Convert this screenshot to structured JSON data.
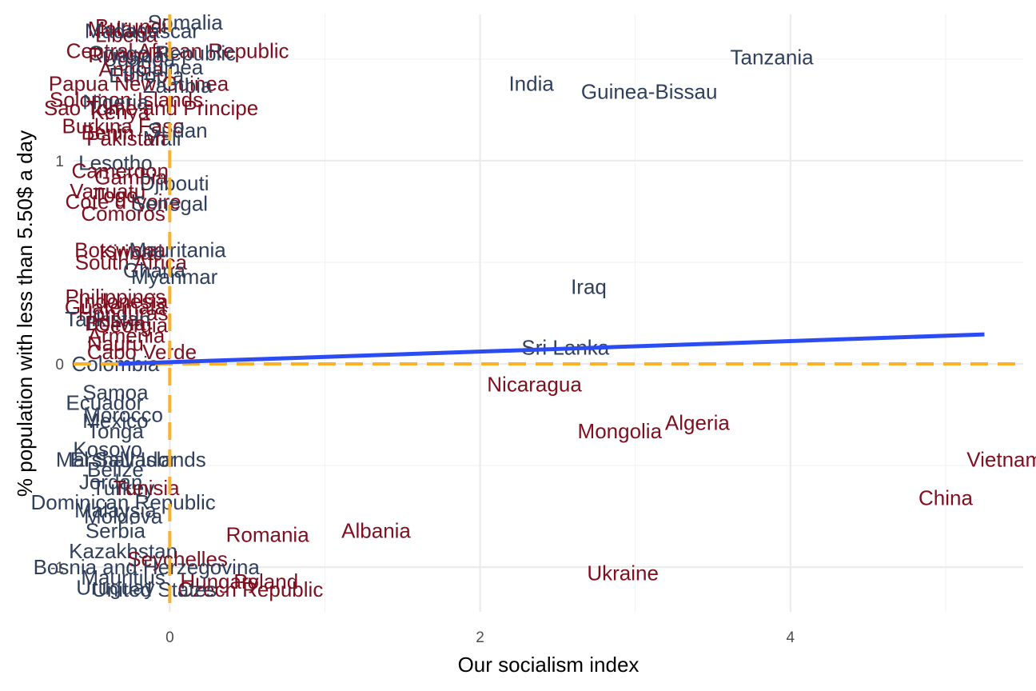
{
  "chart_data": {
    "type": "scatter",
    "title": "",
    "xlabel": "Our socialism index",
    "ylabel": "% population with less than 5.50$ a day",
    "xlim": [
      -0.62,
      5.5
    ],
    "ylim": [
      -1.22,
      1.72
    ],
    "x_ticks": [
      0,
      2,
      4
    ],
    "y_ticks": [
      -1,
      0,
      1
    ],
    "grid": true,
    "colors": {
      "positive": "#2f3f5c",
      "negative": "#7f0f1f",
      "trend": "#2b4cf3",
      "reference": "#fbb12a"
    },
    "reference_lines": {
      "x": 0,
      "y": 0
    },
    "trend_line": {
      "x": [
        -0.33,
        5.25
      ],
      "y": [
        0.0,
        0.145
      ]
    },
    "points": [
      {
        "label": "Tanzania",
        "x": 3.88,
        "y": 1.51,
        "group": "positive"
      },
      {
        "label": "India",
        "x": 2.33,
        "y": 1.38,
        "group": "positive"
      },
      {
        "label": "Guinea-Bissau",
        "x": 3.09,
        "y": 1.34,
        "group": "positive"
      },
      {
        "label": "Iraq",
        "x": 2.7,
        "y": 0.38,
        "group": "positive"
      },
      {
        "label": "Sri Lanka",
        "x": 2.55,
        "y": 0.08,
        "group": "positive"
      },
      {
        "label": "Nicaragua",
        "x": 2.35,
        "y": -0.1,
        "group": "negative"
      },
      {
        "label": "Mongolia",
        "x": 2.9,
        "y": -0.33,
        "group": "negative"
      },
      {
        "label": "Algeria",
        "x": 3.4,
        "y": -0.29,
        "group": "negative"
      },
      {
        "label": "Vietnam",
        "x": 5.38,
        "y": -0.47,
        "group": "negative"
      },
      {
        "label": "China",
        "x": 5.0,
        "y": -0.66,
        "group": "negative"
      },
      {
        "label": "Albania",
        "x": 1.33,
        "y": -0.82,
        "group": "negative"
      },
      {
        "label": "Romania",
        "x": 0.63,
        "y": -0.84,
        "group": "negative"
      },
      {
        "label": "Ukraine",
        "x": 2.92,
        "y": -1.03,
        "group": "negative"
      },
      {
        "label": "Poland",
        "x": 0.62,
        "y": -1.07,
        "group": "negative"
      },
      {
        "label": "Czech Republic",
        "x": 0.52,
        "y": -1.11,
        "group": "negative"
      },
      {
        "label": "Hungary",
        "x": 0.32,
        "y": -1.07,
        "group": "negative"
      },
      {
        "label": "Somalia",
        "x": 0.1,
        "y": 1.68,
        "group": "positive"
      },
      {
        "label": "Burundi",
        "x": -0.25,
        "y": 1.66,
        "group": "negative"
      },
      {
        "label": "Malawi",
        "x": -0.32,
        "y": 1.65,
        "group": "negative"
      },
      {
        "label": "Liberia",
        "x": -0.28,
        "y": 1.62,
        "group": "negative"
      },
      {
        "label": "Madagascar",
        "x": -0.18,
        "y": 1.64,
        "group": "positive"
      },
      {
        "label": "Central African Republic",
        "x": 0.05,
        "y": 1.54,
        "group": "negative"
      },
      {
        "label": "Congo Republic",
        "x": -0.05,
        "y": 1.53,
        "group": "positive"
      },
      {
        "label": "Rwanda",
        "x": -0.28,
        "y": 1.52,
        "group": "negative"
      },
      {
        "label": "Uganda",
        "x": -0.2,
        "y": 1.5,
        "group": "positive"
      },
      {
        "label": "Angola",
        "x": -0.25,
        "y": 1.45,
        "group": "negative"
      },
      {
        "label": "Guinea",
        "x": 0.0,
        "y": 1.46,
        "group": "positive"
      },
      {
        "label": "Ethiopia",
        "x": -0.15,
        "y": 1.42,
        "group": "positive"
      },
      {
        "label": "Papua New Guinea",
        "x": -0.2,
        "y": 1.38,
        "group": "negative"
      },
      {
        "label": "Zambia",
        "x": 0.05,
        "y": 1.37,
        "group": "positive"
      },
      {
        "label": "Solomon Islands",
        "x": -0.28,
        "y": 1.3,
        "group": "negative"
      },
      {
        "label": "Nigeria",
        "x": -0.35,
        "y": 1.29,
        "group": "positive"
      },
      {
        "label": "Sao Tome and Principe",
        "x": -0.12,
        "y": 1.26,
        "group": "negative"
      },
      {
        "label": "Kenya",
        "x": -0.32,
        "y": 1.24,
        "group": "negative"
      },
      {
        "label": "Burkina Faso",
        "x": -0.3,
        "y": 1.17,
        "group": "negative"
      },
      {
        "label": "Sudan",
        "x": 0.05,
        "y": 1.15,
        "group": "positive"
      },
      {
        "label": "Benin",
        "x": -0.4,
        "y": 1.14,
        "group": "negative"
      },
      {
        "label": "Mali",
        "x": -0.05,
        "y": 1.11,
        "group": "positive"
      },
      {
        "label": "Pakistan",
        "x": -0.28,
        "y": 1.11,
        "group": "negative"
      },
      {
        "label": "Lesotho",
        "x": -0.35,
        "y": 0.99,
        "group": "positive"
      },
      {
        "label": "Cameroon",
        "x": -0.32,
        "y": 0.95,
        "group": "negative"
      },
      {
        "label": "Gambia",
        "x": -0.25,
        "y": 0.92,
        "group": "negative"
      },
      {
        "label": "Djibouti",
        "x": 0.03,
        "y": 0.89,
        "group": "positive"
      },
      {
        "label": "Vanuatu",
        "x": -0.4,
        "y": 0.85,
        "group": "negative"
      },
      {
        "label": "Togo",
        "x": -0.35,
        "y": 0.83,
        "group": "negative"
      },
      {
        "label": "Cote d'Ivoire",
        "x": -0.3,
        "y": 0.8,
        "group": "negative"
      },
      {
        "label": "Senegal",
        "x": 0.0,
        "y": 0.79,
        "group": "positive"
      },
      {
        "label": "Comoros",
        "x": -0.3,
        "y": 0.74,
        "group": "negative"
      },
      {
        "label": "Botswana",
        "x": -0.32,
        "y": 0.56,
        "group": "negative"
      },
      {
        "label": "Kiribati",
        "x": -0.25,
        "y": 0.55,
        "group": "negative"
      },
      {
        "label": "Mauritania",
        "x": 0.05,
        "y": 0.56,
        "group": "positive"
      },
      {
        "label": "South Africa",
        "x": -0.25,
        "y": 0.5,
        "group": "negative"
      },
      {
        "label": "Ghana",
        "x": -0.1,
        "y": 0.46,
        "group": "positive"
      },
      {
        "label": "Myanmar",
        "x": 0.03,
        "y": 0.43,
        "group": "positive"
      },
      {
        "label": "Philippines",
        "x": -0.35,
        "y": 0.33,
        "group": "negative"
      },
      {
        "label": "Indonesia",
        "x": -0.3,
        "y": 0.31,
        "group": "negative"
      },
      {
        "label": "Guatemala",
        "x": -0.35,
        "y": 0.28,
        "group": "negative"
      },
      {
        "label": "Honduras",
        "x": -0.3,
        "y": 0.25,
        "group": "negative"
      },
      {
        "label": "Tajikistan",
        "x": -0.4,
        "y": 0.22,
        "group": "positive"
      },
      {
        "label": "Bolivia",
        "x": -0.35,
        "y": 0.2,
        "group": "negative"
      },
      {
        "label": "Georgia",
        "x": -0.25,
        "y": 0.19,
        "group": "negative"
      },
      {
        "label": "Armenia",
        "x": -0.28,
        "y": 0.14,
        "group": "negative"
      },
      {
        "label": "Nauru",
        "x": -0.35,
        "y": 0.1,
        "group": "negative"
      },
      {
        "label": "Cabo Verde",
        "x": -0.18,
        "y": 0.06,
        "group": "negative"
      },
      {
        "label": "Colombia",
        "x": -0.35,
        "y": 0.0,
        "group": "positive"
      },
      {
        "label": "Samoa",
        "x": -0.35,
        "y": -0.14,
        "group": "positive"
      },
      {
        "label": "Ecuador",
        "x": -0.42,
        "y": -0.19,
        "group": "positive"
      },
      {
        "label": "Morocco",
        "x": -0.3,
        "y": -0.25,
        "group": "positive"
      },
      {
        "label": "Mexico",
        "x": -0.35,
        "y": -0.28,
        "group": "positive"
      },
      {
        "label": "Tonga",
        "x": -0.35,
        "y": -0.33,
        "group": "positive"
      },
      {
        "label": "Kosovo",
        "x": -0.4,
        "y": -0.42,
        "group": "positive"
      },
      {
        "label": "El Salvador",
        "x": -0.3,
        "y": -0.47,
        "group": "positive"
      },
      {
        "label": "Marshall Islands",
        "x": -0.25,
        "y": -0.47,
        "group": "positive"
      },
      {
        "label": "Belize",
        "x": -0.35,
        "y": -0.52,
        "group": "positive"
      },
      {
        "label": "Jordan",
        "x": -0.38,
        "y": -0.58,
        "group": "positive"
      },
      {
        "label": "Turkey",
        "x": -0.3,
        "y": -0.61,
        "group": "positive"
      },
      {
        "label": "Tunisia",
        "x": -0.15,
        "y": -0.61,
        "group": "negative"
      },
      {
        "label": "Dominican Republic",
        "x": -0.3,
        "y": -0.68,
        "group": "positive"
      },
      {
        "label": "Malaysia",
        "x": -0.35,
        "y": -0.72,
        "group": "positive"
      },
      {
        "label": "Moldova",
        "x": -0.3,
        "y": -0.75,
        "group": "positive"
      },
      {
        "label": "Serbia",
        "x": -0.35,
        "y": -0.82,
        "group": "positive"
      },
      {
        "label": "Kazakhstan",
        "x": -0.3,
        "y": -0.92,
        "group": "positive"
      },
      {
        "label": "Seychelles",
        "x": 0.05,
        "y": -0.96,
        "group": "negative"
      },
      {
        "label": "Bosnia and Herzegovina",
        "x": -0.15,
        "y": -1.0,
        "group": "positive"
      },
      {
        "label": "Mauritius",
        "x": -0.3,
        "y": -1.05,
        "group": "positive"
      },
      {
        "label": "Uruguay",
        "x": -0.35,
        "y": -1.1,
        "group": "positive"
      },
      {
        "label": "United States",
        "x": -0.1,
        "y": -1.11,
        "group": "positive"
      }
    ]
  }
}
